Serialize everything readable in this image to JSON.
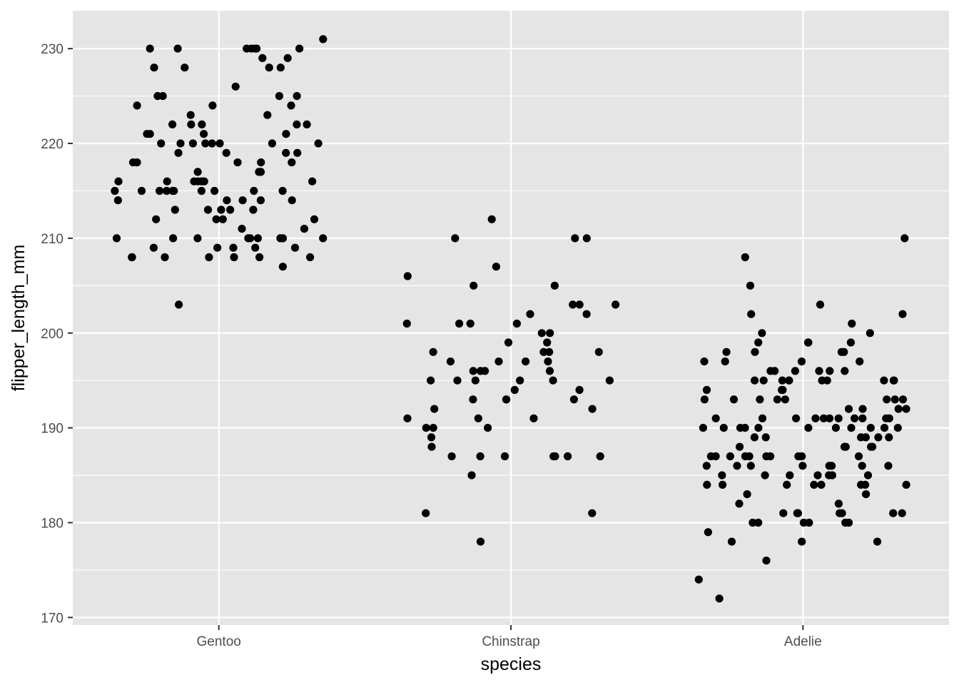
{
  "chart_data": {
    "type": "scatter",
    "jitter": true,
    "xlabel": "species",
    "ylabel": "flipper_length_mm",
    "categories": [
      "Gentoo",
      "Chinstrap",
      "Adelie"
    ],
    "ylim": [
      169.2,
      234.0
    ],
    "yticks": [
      170,
      180,
      190,
      200,
      210,
      220,
      230
    ],
    "grid": true,
    "legend": "none",
    "colors": {
      "panel": "#e5e5e5",
      "grid": "#ffffff",
      "point": "#000000",
      "tick_text": "#4d4d4d"
    },
    "points": [
      [
        "Gentoo",
        230
      ],
      [
        "Gentoo",
        230
      ],
      [
        "Gentoo",
        230
      ],
      [
        "Gentoo",
        231
      ],
      [
        "Gentoo",
        230
      ],
      [
        "Gentoo",
        230
      ],
      [
        "Gentoo",
        230
      ],
      [
        "Gentoo",
        230
      ],
      [
        "Gentoo",
        229
      ],
      [
        "Gentoo",
        229
      ],
      [
        "Gentoo",
        228
      ],
      [
        "Gentoo",
        228
      ],
      [
        "Gentoo",
        228
      ],
      [
        "Gentoo",
        228
      ],
      [
        "Gentoo",
        226
      ],
      [
        "Gentoo",
        225
      ],
      [
        "Gentoo",
        225
      ],
      [
        "Gentoo",
        225
      ],
      [
        "Gentoo",
        225
      ],
      [
        "Gentoo",
        224
      ],
      [
        "Gentoo",
        224
      ],
      [
        "Gentoo",
        224
      ],
      [
        "Gentoo",
        223
      ],
      [
        "Gentoo",
        223
      ],
      [
        "Gentoo",
        222
      ],
      [
        "Gentoo",
        222
      ],
      [
        "Gentoo",
        222
      ],
      [
        "Gentoo",
        222
      ],
      [
        "Gentoo",
        222
      ],
      [
        "Gentoo",
        221
      ],
      [
        "Gentoo",
        221
      ],
      [
        "Gentoo",
        221
      ],
      [
        "Gentoo",
        221
      ],
      [
        "Gentoo",
        220
      ],
      [
        "Gentoo",
        220
      ],
      [
        "Gentoo",
        220
      ],
      [
        "Gentoo",
        220
      ],
      [
        "Gentoo",
        220
      ],
      [
        "Gentoo",
        220
      ],
      [
        "Gentoo",
        220
      ],
      [
        "Gentoo",
        220
      ],
      [
        "Gentoo",
        219
      ],
      [
        "Gentoo",
        219
      ],
      [
        "Gentoo",
        219
      ],
      [
        "Gentoo",
        219
      ],
      [
        "Gentoo",
        218
      ],
      [
        "Gentoo",
        218
      ],
      [
        "Gentoo",
        218
      ],
      [
        "Gentoo",
        218
      ],
      [
        "Gentoo",
        218
      ],
      [
        "Gentoo",
        217
      ],
      [
        "Gentoo",
        217
      ],
      [
        "Gentoo",
        217
      ],
      [
        "Gentoo",
        216
      ],
      [
        "Gentoo",
        216
      ],
      [
        "Gentoo",
        216
      ],
      [
        "Gentoo",
        216
      ],
      [
        "Gentoo",
        216
      ],
      [
        "Gentoo",
        216
      ],
      [
        "Gentoo",
        216
      ],
      [
        "Gentoo",
        215
      ],
      [
        "Gentoo",
        215
      ],
      [
        "Gentoo",
        215
      ],
      [
        "Gentoo",
        215
      ],
      [
        "Gentoo",
        215
      ],
      [
        "Gentoo",
        215
      ],
      [
        "Gentoo",
        215
      ],
      [
        "Gentoo",
        215
      ],
      [
        "Gentoo",
        215
      ],
      [
        "Gentoo",
        215
      ],
      [
        "Gentoo",
        214
      ],
      [
        "Gentoo",
        214
      ],
      [
        "Gentoo",
        214
      ],
      [
        "Gentoo",
        214
      ],
      [
        "Gentoo",
        214
      ],
      [
        "Gentoo",
        213
      ],
      [
        "Gentoo",
        213
      ],
      [
        "Gentoo",
        213
      ],
      [
        "Gentoo",
        213
      ],
      [
        "Gentoo",
        213
      ],
      [
        "Gentoo",
        212
      ],
      [
        "Gentoo",
        212
      ],
      [
        "Gentoo",
        212
      ],
      [
        "Gentoo",
        212
      ],
      [
        "Gentoo",
        211
      ],
      [
        "Gentoo",
        211
      ],
      [
        "Gentoo",
        210
      ],
      [
        "Gentoo",
        210
      ],
      [
        "Gentoo",
        210
      ],
      [
        "Gentoo",
        210
      ],
      [
        "Gentoo",
        210
      ],
      [
        "Gentoo",
        210
      ],
      [
        "Gentoo",
        210
      ],
      [
        "Gentoo",
        210
      ],
      [
        "Gentoo",
        210
      ],
      [
        "Gentoo",
        209
      ],
      [
        "Gentoo",
        209
      ],
      [
        "Gentoo",
        209
      ],
      [
        "Gentoo",
        209
      ],
      [
        "Gentoo",
        209
      ],
      [
        "Gentoo",
        208
      ],
      [
        "Gentoo",
        208
      ],
      [
        "Gentoo",
        208
      ],
      [
        "Gentoo",
        208
      ],
      [
        "Gentoo",
        208
      ],
      [
        "Gentoo",
        208
      ],
      [
        "Gentoo",
        208
      ],
      [
        "Gentoo",
        207
      ],
      [
        "Gentoo",
        203
      ],
      [
        "Chinstrap",
        210
      ],
      [
        "Chinstrap",
        210
      ],
      [
        "Chinstrap",
        210
      ],
      [
        "Chinstrap",
        212
      ],
      [
        "Chinstrap",
        207
      ],
      [
        "Chinstrap",
        206
      ],
      [
        "Chinstrap",
        205
      ],
      [
        "Chinstrap",
        205
      ],
      [
        "Chinstrap",
        203
      ],
      [
        "Chinstrap",
        203
      ],
      [
        "Chinstrap",
        203
      ],
      [
        "Chinstrap",
        202
      ],
      [
        "Chinstrap",
        202
      ],
      [
        "Chinstrap",
        201
      ],
      [
        "Chinstrap",
        201
      ],
      [
        "Chinstrap",
        201
      ],
      [
        "Chinstrap",
        201
      ],
      [
        "Chinstrap",
        200
      ],
      [
        "Chinstrap",
        200
      ],
      [
        "Chinstrap",
        199
      ],
      [
        "Chinstrap",
        199
      ],
      [
        "Chinstrap",
        198
      ],
      [
        "Chinstrap",
        198
      ],
      [
        "Chinstrap",
        198
      ],
      [
        "Chinstrap",
        198
      ],
      [
        "Chinstrap",
        197
      ],
      [
        "Chinstrap",
        197
      ],
      [
        "Chinstrap",
        197
      ],
      [
        "Chinstrap",
        197
      ],
      [
        "Chinstrap",
        196
      ],
      [
        "Chinstrap",
        196
      ],
      [
        "Chinstrap",
        196
      ],
      [
        "Chinstrap",
        196
      ],
      [
        "Chinstrap",
        195
      ],
      [
        "Chinstrap",
        195
      ],
      [
        "Chinstrap",
        195
      ],
      [
        "Chinstrap",
        195
      ],
      [
        "Chinstrap",
        195
      ],
      [
        "Chinstrap",
        195
      ],
      [
        "Chinstrap",
        194
      ],
      [
        "Chinstrap",
        194
      ],
      [
        "Chinstrap",
        193
      ],
      [
        "Chinstrap",
        193
      ],
      [
        "Chinstrap",
        193
      ],
      [
        "Chinstrap",
        193
      ],
      [
        "Chinstrap",
        192
      ],
      [
        "Chinstrap",
        192
      ],
      [
        "Chinstrap",
        191
      ],
      [
        "Chinstrap",
        191
      ],
      [
        "Chinstrap",
        191
      ],
      [
        "Chinstrap",
        190
      ],
      [
        "Chinstrap",
        190
      ],
      [
        "Chinstrap",
        190
      ],
      [
        "Chinstrap",
        189
      ],
      [
        "Chinstrap",
        188
      ],
      [
        "Chinstrap",
        187
      ],
      [
        "Chinstrap",
        187
      ],
      [
        "Chinstrap",
        187
      ],
      [
        "Chinstrap",
        187
      ],
      [
        "Chinstrap",
        187
      ],
      [
        "Chinstrap",
        187
      ],
      [
        "Chinstrap",
        187
      ],
      [
        "Chinstrap",
        185
      ],
      [
        "Chinstrap",
        181
      ],
      [
        "Chinstrap",
        181
      ],
      [
        "Chinstrap",
        178
      ],
      [
        "Adelie",
        210
      ],
      [
        "Adelie",
        208
      ],
      [
        "Adelie",
        205
      ],
      [
        "Adelie",
        203
      ],
      [
        "Adelie",
        202
      ],
      [
        "Adelie",
        202
      ],
      [
        "Adelie",
        201
      ],
      [
        "Adelie",
        200
      ],
      [
        "Adelie",
        200
      ],
      [
        "Adelie",
        199
      ],
      [
        "Adelie",
        199
      ],
      [
        "Adelie",
        199
      ],
      [
        "Adelie",
        199
      ],
      [
        "Adelie",
        198
      ],
      [
        "Adelie",
        198
      ],
      [
        "Adelie",
        198
      ],
      [
        "Adelie",
        198
      ],
      [
        "Adelie",
        197
      ],
      [
        "Adelie",
        197
      ],
      [
        "Adelie",
        197
      ],
      [
        "Adelie",
        197
      ],
      [
        "Adelie",
        196
      ],
      [
        "Adelie",
        196
      ],
      [
        "Adelie",
        196
      ],
      [
        "Adelie",
        196
      ],
      [
        "Adelie",
        196
      ],
      [
        "Adelie",
        196
      ],
      [
        "Adelie",
        195
      ],
      [
        "Adelie",
        195
      ],
      [
        "Adelie",
        195
      ],
      [
        "Adelie",
        195
      ],
      [
        "Adelie",
        195
      ],
      [
        "Adelie",
        195
      ],
      [
        "Adelie",
        195
      ],
      [
        "Adelie",
        195
      ],
      [
        "Adelie",
        195
      ],
      [
        "Adelie",
        195
      ],
      [
        "Adelie",
        194
      ],
      [
        "Adelie",
        194
      ],
      [
        "Adelie",
        194
      ],
      [
        "Adelie",
        193
      ],
      [
        "Adelie",
        193
      ],
      [
        "Adelie",
        193
      ],
      [
        "Adelie",
        193
      ],
      [
        "Adelie",
        193
      ],
      [
        "Adelie",
        193
      ],
      [
        "Adelie",
        193
      ],
      [
        "Adelie",
        193
      ],
      [
        "Adelie",
        192
      ],
      [
        "Adelie",
        192
      ],
      [
        "Adelie",
        192
      ],
      [
        "Adelie",
        192
      ],
      [
        "Adelie",
        191
      ],
      [
        "Adelie",
        191
      ],
      [
        "Adelie",
        191
      ],
      [
        "Adelie",
        191
      ],
      [
        "Adelie",
        191
      ],
      [
        "Adelie",
        191
      ],
      [
        "Adelie",
        191
      ],
      [
        "Adelie",
        191
      ],
      [
        "Adelie",
        191
      ],
      [
        "Adelie",
        191
      ],
      [
        "Adelie",
        191
      ],
      [
        "Adelie",
        190
      ],
      [
        "Adelie",
        190
      ],
      [
        "Adelie",
        190
      ],
      [
        "Adelie",
        190
      ],
      [
        "Adelie",
        190
      ],
      [
        "Adelie",
        190
      ],
      [
        "Adelie",
        190
      ],
      [
        "Adelie",
        190
      ],
      [
        "Adelie",
        190
      ],
      [
        "Adelie",
        190
      ],
      [
        "Adelie",
        190
      ],
      [
        "Adelie",
        189
      ],
      [
        "Adelie",
        189
      ],
      [
        "Adelie",
        189
      ],
      [
        "Adelie",
        189
      ],
      [
        "Adelie",
        189
      ],
      [
        "Adelie",
        189
      ],
      [
        "Adelie",
        188
      ],
      [
        "Adelie",
        188
      ],
      [
        "Adelie",
        188
      ],
      [
        "Adelie",
        188
      ],
      [
        "Adelie",
        188
      ],
      [
        "Adelie",
        187
      ],
      [
        "Adelie",
        187
      ],
      [
        "Adelie",
        187
      ],
      [
        "Adelie",
        187
      ],
      [
        "Adelie",
        187
      ],
      [
        "Adelie",
        187
      ],
      [
        "Adelie",
        187
      ],
      [
        "Adelie",
        187
      ],
      [
        "Adelie",
        187
      ],
      [
        "Adelie",
        187
      ],
      [
        "Adelie",
        186
      ],
      [
        "Adelie",
        186
      ],
      [
        "Adelie",
        186
      ],
      [
        "Adelie",
        186
      ],
      [
        "Adelie",
        186
      ],
      [
        "Adelie",
        186
      ],
      [
        "Adelie",
        186
      ],
      [
        "Adelie",
        186
      ],
      [
        "Adelie",
        185
      ],
      [
        "Adelie",
        185
      ],
      [
        "Adelie",
        185
      ],
      [
        "Adelie",
        185
      ],
      [
        "Adelie",
        185
      ],
      [
        "Adelie",
        185
      ],
      [
        "Adelie",
        185
      ],
      [
        "Adelie",
        184
      ],
      [
        "Adelie",
        184
      ],
      [
        "Adelie",
        184
      ],
      [
        "Adelie",
        184
      ],
      [
        "Adelie",
        184
      ],
      [
        "Adelie",
        184
      ],
      [
        "Adelie",
        184
      ],
      [
        "Adelie",
        184
      ],
      [
        "Adelie",
        183
      ],
      [
        "Adelie",
        183
      ],
      [
        "Adelie",
        182
      ],
      [
        "Adelie",
        182
      ],
      [
        "Adelie",
        181
      ],
      [
        "Adelie",
        181
      ],
      [
        "Adelie",
        181
      ],
      [
        "Adelie",
        181
      ],
      [
        "Adelie",
        181
      ],
      [
        "Adelie",
        181
      ],
      [
        "Adelie",
        181
      ],
      [
        "Adelie",
        180
      ],
      [
        "Adelie",
        180
      ],
      [
        "Adelie",
        180
      ],
      [
        "Adelie",
        180
      ],
      [
        "Adelie",
        180
      ],
      [
        "Adelie",
        180
      ],
      [
        "Adelie",
        179
      ],
      [
        "Adelie",
        178
      ],
      [
        "Adelie",
        178
      ],
      [
        "Adelie",
        178
      ],
      [
        "Adelie",
        176
      ],
      [
        "Adelie",
        174
      ],
      [
        "Adelie",
        172
      ]
    ]
  }
}
